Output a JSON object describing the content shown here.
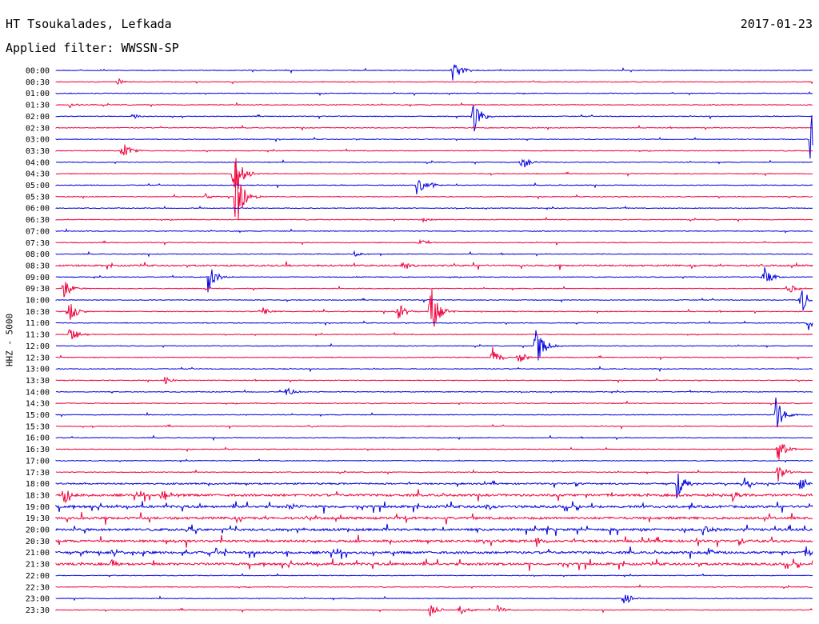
{
  "header": {
    "station": "HT Tsoukalades, Lefkada",
    "date": "2017-01-23",
    "filter_label": "Applied filter: WWSSN-SP"
  },
  "chart_data": {
    "type": "line",
    "title": "HT Tsoukalades, Lefkada",
    "ylabel": "HHZ - 5000",
    "row_labels": [
      "00:00",
      "00:30",
      "01:00",
      "01:30",
      "02:00",
      "02:30",
      "03:00",
      "03:30",
      "04:00",
      "04:30",
      "05:00",
      "05:30",
      "06:00",
      "06:30",
      "07:00",
      "07:30",
      "08:00",
      "08:30",
      "09:00",
      "09:30",
      "10:00",
      "10:30",
      "11:00",
      "11:30",
      "12:00",
      "12:30",
      "13:00",
      "13:30",
      "14:00",
      "14:30",
      "15:00",
      "15:30",
      "16:00",
      "16:30",
      "17:00",
      "17:30",
      "18:00",
      "18:30",
      "19:00",
      "19:30",
      "20:00",
      "20:30",
      "21:00",
      "21:30",
      "22:00",
      "22:30",
      "23:00",
      "23:30"
    ],
    "series_colors": [
      "#0000e0",
      "#f0003c"
    ],
    "noise_level": [
      1,
      1,
      1,
      1,
      1,
      1,
      1,
      1,
      1,
      1,
      1,
      1,
      1,
      1,
      1,
      1,
      1,
      2,
      1,
      1,
      1,
      1,
      1,
      1,
      1,
      1,
      1,
      1,
      1,
      1,
      1,
      1,
      1,
      1,
      1,
      1,
      2,
      3,
      3,
      3,
      3,
      3,
      3,
      3,
      1,
      1,
      1,
      1
    ],
    "events": [
      {
        "row": 0,
        "minute": 15.7,
        "amplitude": 22
      },
      {
        "row": 1,
        "minute": 2.4,
        "amplitude": 6
      },
      {
        "row": 3,
        "minute": 0.5,
        "amplitude": 4
      },
      {
        "row": 4,
        "minute": 3.0,
        "amplitude": 4
      },
      {
        "row": 4,
        "minute": 16.5,
        "amplitude": 28
      },
      {
        "row": 6,
        "minute": 29.9,
        "amplitude": 40
      },
      {
        "row": 7,
        "minute": 2.6,
        "amplitude": 14
      },
      {
        "row": 8,
        "minute": 18.4,
        "amplitude": 14
      },
      {
        "row": 9,
        "minute": 7.0,
        "amplitude": 48
      },
      {
        "row": 10,
        "minute": 14.3,
        "amplitude": 14
      },
      {
        "row": 10,
        "minute": 14.9,
        "amplitude": 4
      },
      {
        "row": 11,
        "minute": 7.1,
        "amplitude": 60
      },
      {
        "row": 11,
        "minute": 5.9,
        "amplitude": 4
      },
      {
        "row": 13,
        "minute": 14.5,
        "amplitude": 3
      },
      {
        "row": 15,
        "minute": 14.4,
        "amplitude": 4
      },
      {
        "row": 16,
        "minute": 11.8,
        "amplitude": 4
      },
      {
        "row": 17,
        "minute": 13.7,
        "amplitude": 5
      },
      {
        "row": 18,
        "minute": 6.0,
        "amplitude": 22
      },
      {
        "row": 18,
        "minute": 28.0,
        "amplitude": 18
      },
      {
        "row": 19,
        "minute": 0.3,
        "amplitude": 16
      },
      {
        "row": 19,
        "minute": 29.0,
        "amplitude": 8
      },
      {
        "row": 20,
        "minute": 29.5,
        "amplitude": 22
      },
      {
        "row": 21,
        "minute": 14.8,
        "amplitude": 48
      },
      {
        "row": 21,
        "minute": 13.5,
        "amplitude": 14
      },
      {
        "row": 21,
        "minute": 0.5,
        "amplitude": 18
      },
      {
        "row": 21,
        "minute": 8.2,
        "amplitude": 6
      },
      {
        "row": 22,
        "minute": 29.8,
        "amplitude": 12
      },
      {
        "row": 23,
        "minute": 0.5,
        "amplitude": 14
      },
      {
        "row": 24,
        "minute": 19.0,
        "amplitude": 34
      },
      {
        "row": 25,
        "minute": 17.3,
        "amplitude": 14
      },
      {
        "row": 25,
        "minute": 18.3,
        "amplitude": 10
      },
      {
        "row": 27,
        "minute": 4.3,
        "amplitude": 6
      },
      {
        "row": 28,
        "minute": 9.1,
        "amplitude": 8
      },
      {
        "row": 30,
        "minute": 28.5,
        "amplitude": 26
      },
      {
        "row": 31,
        "minute": 10.0,
        "amplitude": 3
      },
      {
        "row": 33,
        "minute": 28.6,
        "amplitude": 18
      },
      {
        "row": 35,
        "minute": 28.6,
        "amplitude": 14
      },
      {
        "row": 36,
        "minute": 24.6,
        "amplitude": 20
      },
      {
        "row": 36,
        "minute": 29.4,
        "amplitude": 14
      },
      {
        "row": 36,
        "minute": 27.3,
        "amplitude": 8
      },
      {
        "row": 37,
        "minute": 0.3,
        "amplitude": 14
      },
      {
        "row": 37,
        "minute": 4.2,
        "amplitude": 10
      },
      {
        "row": 37,
        "minute": 26.8,
        "amplitude": 8
      },
      {
        "row": 38,
        "minute": 9.2,
        "amplitude": 6
      },
      {
        "row": 38,
        "minute": 17.0,
        "amplitude": 4
      },
      {
        "row": 40,
        "minute": 25.6,
        "amplitude": 10
      },
      {
        "row": 40,
        "minute": 5.1,
        "amplitude": 5
      },
      {
        "row": 41,
        "minute": 19.0,
        "amplitude": 6
      },
      {
        "row": 42,
        "minute": 2.2,
        "amplitude": 6
      },
      {
        "row": 42,
        "minute": 29.7,
        "amplitude": 8
      },
      {
        "row": 42,
        "minute": 25.8,
        "amplitude": 6
      },
      {
        "row": 43,
        "minute": 2.2,
        "amplitude": 6
      },
      {
        "row": 46,
        "minute": 22.5,
        "amplitude": 10
      },
      {
        "row": 47,
        "minute": 14.8,
        "amplitude": 12
      },
      {
        "row": 47,
        "minute": 16.0,
        "amplitude": 8
      },
      {
        "row": 47,
        "minute": 17.5,
        "amplitude": 6
      }
    ]
  }
}
